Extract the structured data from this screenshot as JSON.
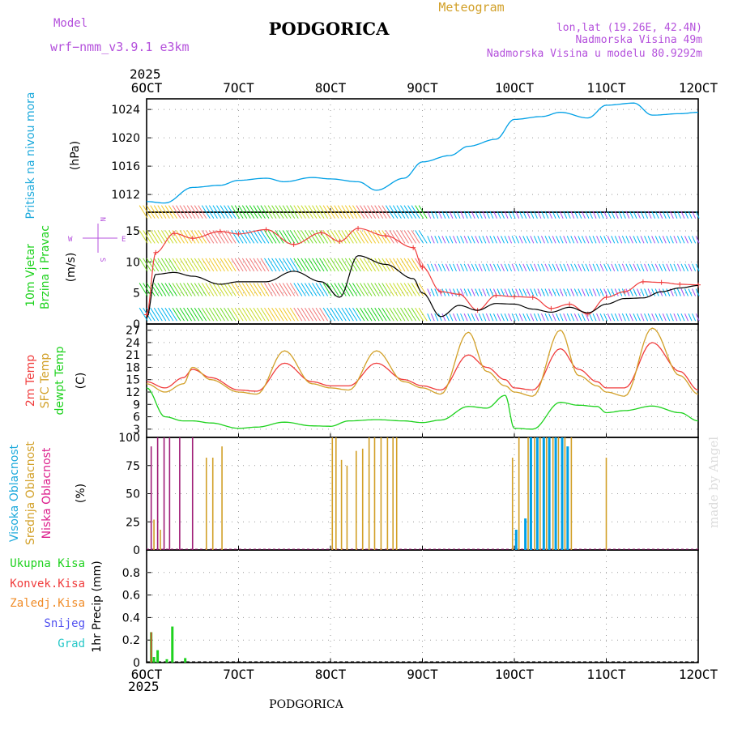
{
  "header": {
    "model_label": "Model",
    "model_name": "wrf−nmm_v3.9.1  e3km",
    "station": "PODGORICA",
    "product": "Meteogram",
    "lonlat": "lon,lat (19.26E, 42.4N)",
    "elevation": "Nadmorska Visina 49m",
    "model_elevation": "Nadmorska Visina u modelu 80.9292m",
    "footer_station": "PODGORICA",
    "credit": "made by Angel"
  },
  "colors": {
    "pressure": "#00a0e6",
    "wind_speed": "#000000",
    "gust": "#f03c3c",
    "temp2m": "#f03c3c",
    "sfc_temp": "#d2a028",
    "dewpt": "#1ed21e",
    "cloud_high": "#00a0e6",
    "cloud_mid": "#d2a028",
    "cloud_low": "#a01e78",
    "precip_total": "#1ed21e",
    "precip_conv": "#f03c3c",
    "precip_frz": "#f08c28",
    "snow": "#5050f0",
    "graupel": "#28c8c8",
    "label_purple": "#b450dc",
    "label_blue": "#1eaadc",
    "label_green": "#1ed21e",
    "label_pink": "#dc1e8c"
  },
  "chart_data": [
    {
      "type": "line",
      "title": "Pritisak na nivou mora",
      "ylabel": "(hPa)",
      "ylim": [
        1009.5,
        1025.5
      ],
      "yticks": [
        "1012",
        "1016",
        "1020",
        "1024"
      ],
      "x_days": [
        6.0,
        6.2,
        6.5,
        6.8,
        7.0,
        7.3,
        7.5,
        7.8,
        8.0,
        8.3,
        8.5,
        8.8,
        9.0,
        9.3,
        9.5,
        9.8,
        10.0,
        10.3,
        10.5,
        10.8,
        11.0,
        11.3,
        11.5,
        11.8,
        12.0
      ],
      "values": [
        1011,
        1010.8,
        1013,
        1013.3,
        1014,
        1014.3,
        1013.8,
        1014.4,
        1014.2,
        1013.8,
        1012.6,
        1014.3,
        1016.6,
        1017.5,
        1018.8,
        1019.8,
        1022.6,
        1023,
        1023.6,
        1022.8,
        1024.6,
        1024.9,
        1023.2,
        1023.4,
        1023.6
      ]
    },
    {
      "type": "line",
      "title": "10m Vjetar Brzina i Pravac",
      "ylabel": "(m/s)",
      "ylim": [
        0,
        18
      ],
      "yticks": [
        "0",
        "5",
        "10",
        "15"
      ],
      "compass": [
        "N",
        "E",
        "S",
        "W"
      ],
      "x_days": [
        6.0,
        6.1,
        6.3,
        6.5,
        6.8,
        7.0,
        7.3,
        7.6,
        7.9,
        8.1,
        8.3,
        8.6,
        8.9,
        9.0,
        9.2,
        9.4,
        9.6,
        9.8,
        10.0,
        10.2,
        10.4,
        10.6,
        10.8,
        11.0,
        11.2,
        11.4,
        11.6,
        11.8,
        12.0
      ],
      "series": [
        {
          "name": "speed",
          "values": [
            1,
            8,
            8.3,
            7.7,
            6.4,
            6.8,
            6.8,
            8.5,
            6.8,
            4.3,
            11,
            9.6,
            7.3,
            5,
            1.2,
            3,
            2.2,
            3.3,
            3.2,
            2.4,
            1.9,
            2.7,
            1.8,
            3.2,
            4.1,
            4.2,
            5.2,
            5.8,
            6.2
          ]
        },
        {
          "name": "gust",
          "values": [
            1.5,
            11.5,
            14.6,
            13.8,
            14.9,
            14.5,
            15.2,
            12.8,
            14.7,
            13.3,
            15.4,
            14.2,
            12.3,
            9.2,
            5.2,
            4.8,
            2.2,
            4.6,
            4.4,
            4.3,
            2.5,
            3.2,
            1.6,
            4.3,
            5.2,
            6.8,
            6.7,
            6.4,
            6.3
          ]
        }
      ]
    },
    {
      "type": "line",
      "title": "2m Temp / SFC Temp / dewpt Temp",
      "ylabel": "(C)",
      "ylim": [
        1,
        28.5
      ],
      "yticks": [
        "3",
        "6",
        "9",
        "12",
        "15",
        "18",
        "21",
        "24",
        "27"
      ],
      "x_days": [
        6.0,
        6.2,
        6.4,
        6.5,
        6.7,
        7.0,
        7.2,
        7.5,
        7.8,
        8.0,
        8.2,
        8.5,
        8.8,
        9.0,
        9.2,
        9.5,
        9.7,
        9.9,
        10.0,
        10.2,
        10.5,
        10.7,
        10.9,
        11.0,
        11.2,
        11.5,
        11.8,
        12.0
      ],
      "series": [
        {
          "name": "2m Temp",
          "values": [
            14.5,
            13,
            15.5,
            17.5,
            15.5,
            12.5,
            12.2,
            19,
            14.5,
            13.5,
            13.5,
            19,
            15,
            13.5,
            12.5,
            21,
            18,
            15,
            13,
            12.5,
            22.5,
            17.5,
            14.5,
            13,
            13,
            24,
            17,
            12.5
          ]
        },
        {
          "name": "SFC Temp",
          "values": [
            14,
            12,
            14,
            18,
            15,
            12,
            11.5,
            22,
            14,
            13,
            12.5,
            22,
            14.5,
            13,
            11.5,
            26.5,
            17,
            13.5,
            12,
            11,
            27,
            16,
            13.5,
            12,
            11,
            27.5,
            16,
            11.5
          ]
        },
        {
          "name": "dewpt Temp",
          "values": [
            13,
            6,
            5,
            5,
            4.5,
            3.2,
            3.5,
            4.7,
            3.8,
            3.7,
            5,
            5.3,
            5,
            4.6,
            5.2,
            8.5,
            8.1,
            11.2,
            3.2,
            3,
            9.5,
            8.8,
            8.5,
            7,
            7.5,
            8.6,
            7,
            5
          ]
        }
      ]
    },
    {
      "type": "bar",
      "title": "Visoka Oblacnost / Srednja Oblacnost / Niska Oblacnost",
      "ylabel": "(%)",
      "ylim": [
        0,
        100
      ],
      "yticks": [
        "0",
        "25",
        "50",
        "75",
        "100"
      ],
      "series": [
        {
          "name": "Niska",
          "x_days": [
            6.05,
            6.12,
            6.19,
            6.25,
            6.36,
            6.5
          ],
          "values": [
            92,
            100,
            100,
            100,
            100,
            100
          ]
        },
        {
          "name": "Srednja",
          "x_days": [
            6.08,
            6.15,
            6.65,
            6.72,
            6.82,
            8.02,
            8.06,
            8.12,
            8.18,
            8.28,
            8.35,
            8.42,
            8.48,
            8.55,
            8.62,
            8.68,
            8.72,
            9.98,
            10.05,
            10.15,
            10.22,
            10.28,
            10.35,
            10.42,
            10.48,
            10.55,
            10.62,
            11.0
          ],
          "values": [
            27,
            18,
            82,
            82,
            92,
            100,
            100,
            80,
            75,
            88,
            90,
            100,
            100,
            100,
            100,
            100,
            100,
            82,
            100,
            100,
            100,
            100,
            100,
            100,
            100,
            100,
            100,
            82
          ]
        },
        {
          "name": "Visoka",
          "x_days": [
            10.02,
            10.12,
            10.18,
            10.25,
            10.32,
            10.38,
            10.45,
            10.52,
            10.58
          ],
          "values": [
            18,
            28,
            100,
            100,
            100,
            100,
            100,
            100,
            92
          ]
        }
      ]
    },
    {
      "type": "bar",
      "title": "1hr Precip",
      "ylabel": "(mm)",
      "ylim": [
        0,
        1.0
      ],
      "yticks": [
        "0",
        "0.2",
        "0.4",
        "0.6",
        "0.8"
      ],
      "legend": [
        "Ukupna  Kisa",
        "Konvek.Kisa",
        "Zaledj.Kisa",
        "Snijeg",
        "Grad"
      ],
      "series": [
        {
          "name": "Ukupna Kisa",
          "x_days": [
            6.05,
            6.08,
            6.12,
            6.22,
            6.28,
            6.42
          ],
          "values": [
            0.27,
            0.05,
            0.11,
            0.03,
            0.32,
            0.04
          ]
        },
        {
          "name": "Konvek.Kisa",
          "x_days": [
            6.05
          ],
          "values": [
            0.27
          ]
        }
      ]
    }
  ],
  "time_axis": {
    "year_top": "2025",
    "year_bottom": "2025",
    "labels": [
      "6OCT",
      "7OCT",
      "8OCT",
      "9OCT",
      "10OCT",
      "11OCT",
      "12OCT"
    ]
  },
  "panel_labels": {
    "pressure": [
      "Pritisak na nivou mora",
      "(hPa)"
    ],
    "wind": [
      "10m Vjetar",
      "Brzina i Pravac",
      "(m/s)"
    ],
    "temp": [
      "2m Temp",
      "SFC Temp",
      "dewpt Temp",
      "(C)"
    ],
    "cloud": [
      "Visoka Oblacnost",
      "Srednja Oblacnost",
      "Niska Oblacnost",
      "(%)"
    ],
    "precip": [
      "1hr Precip (mm)"
    ]
  }
}
